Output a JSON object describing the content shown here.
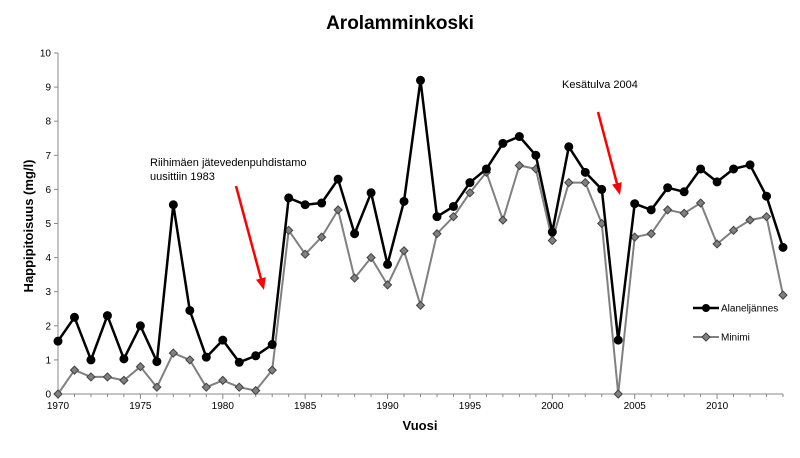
{
  "chart_data": {
    "type": "line",
    "title": "Arolamminkoski",
    "xlabel": "Vuosi",
    "ylabel": "Happipitoisuus  (mg/l)",
    "xlim": [
      1970,
      2014
    ],
    "ylim": [
      0,
      10
    ],
    "x_ticks": [
      1970,
      1975,
      1980,
      1985,
      1990,
      1995,
      2000,
      2005,
      2010
    ],
    "y_ticks": [
      0,
      1,
      2,
      3,
      4,
      5,
      6,
      7,
      8,
      9,
      10
    ],
    "grid": false,
    "legend_position": "right",
    "x": [
      1970,
      1971,
      1972,
      1973,
      1974,
      1975,
      1976,
      1977,
      1978,
      1979,
      1980,
      1981,
      1982,
      1983,
      1984,
      1985,
      1986,
      1987,
      1988,
      1989,
      1990,
      1991,
      1992,
      1993,
      1994,
      1995,
      1996,
      1997,
      1998,
      1999,
      2000,
      2001,
      2002,
      2003,
      2004,
      2005,
      2006,
      2007,
      2008,
      2009,
      2010,
      2011,
      2012,
      2013,
      2014
    ],
    "series": [
      {
        "name": "Alaneljännes",
        "color": "#000000",
        "marker": "circle",
        "values": [
          1.55,
          2.25,
          1.0,
          2.3,
          1.03,
          2.0,
          0.95,
          5.55,
          2.45,
          1.08,
          1.58,
          0.93,
          1.12,
          1.45,
          5.75,
          5.55,
          5.6,
          6.3,
          4.7,
          5.9,
          3.8,
          5.65,
          9.2,
          5.2,
          5.5,
          6.2,
          6.6,
          7.35,
          7.55,
          7.0,
          4.75,
          7.25,
          6.5,
          6.0,
          1.58,
          5.58,
          5.4,
          6.05,
          5.93,
          6.6,
          6.22,
          6.6,
          6.72,
          5.8,
          4.3
        ]
      },
      {
        "name": "Minimi",
        "color": "#808080",
        "marker": "diamond",
        "values": [
          0.0,
          0.7,
          0.5,
          0.5,
          0.4,
          0.8,
          0.2,
          1.2,
          1.0,
          0.2,
          0.4,
          0.2,
          0.1,
          0.7,
          4.8,
          4.1,
          4.6,
          5.4,
          3.4,
          4.0,
          3.2,
          4.2,
          2.6,
          4.7,
          5.2,
          5.9,
          6.5,
          5.1,
          6.7,
          6.6,
          4.5,
          6.2,
          6.2,
          5.0,
          0.0,
          4.6,
          4.7,
          5.4,
          5.3,
          5.6,
          4.4,
          4.8,
          5.1,
          5.2,
          2.9
        ]
      }
    ],
    "annotations": [
      {
        "lines": [
          "Riihimäen jätevedenpuhdistamo",
          "uusittiin 1983"
        ],
        "arrow_color": "#ff0000"
      },
      {
        "lines": [
          "Kesätulva 2004"
        ],
        "arrow_color": "#ff0000"
      }
    ]
  }
}
